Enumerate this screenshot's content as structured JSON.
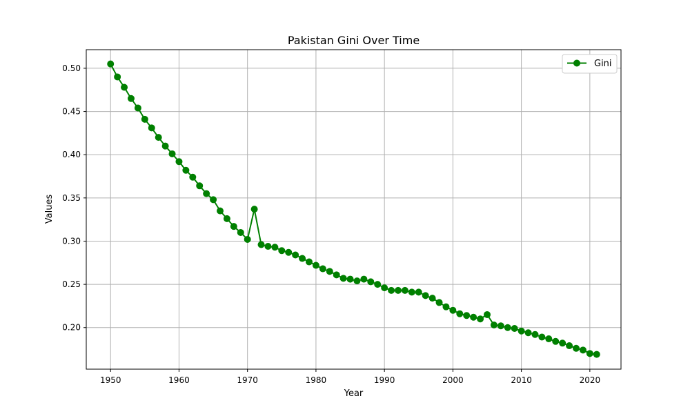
{
  "chart_data": {
    "type": "line",
    "title": "Pakistan Gini Over Time",
    "xlabel": "Year",
    "ylabel": "Values",
    "xlim": [
      1946.45,
      2024.55
    ],
    "ylim": [
      0.1519,
      0.5215
    ],
    "xticks": [
      1950,
      1960,
      1970,
      1980,
      1990,
      2000,
      2010,
      2020
    ],
    "yticks": [
      0.2,
      0.25,
      0.3,
      0.35,
      0.4,
      0.45,
      0.5
    ],
    "yticklabels": [
      "0.20",
      "0.25",
      "0.30",
      "0.35",
      "0.40",
      "0.45",
      "0.50"
    ],
    "grid": true,
    "legend_position": "top-right",
    "x": [
      1950,
      1951,
      1952,
      1953,
      1954,
      1955,
      1956,
      1957,
      1958,
      1959,
      1960,
      1961,
      1962,
      1963,
      1964,
      1965,
      1966,
      1967,
      1968,
      1969,
      1970,
      1971,
      1972,
      1973,
      1974,
      1975,
      1976,
      1977,
      1978,
      1979,
      1980,
      1981,
      1982,
      1983,
      1984,
      1985,
      1986,
      1987,
      1988,
      1989,
      1990,
      1991,
      1992,
      1993,
      1994,
      1995,
      1996,
      1997,
      1998,
      1999,
      2000,
      2001,
      2002,
      2003,
      2004,
      2005,
      2006,
      2007,
      2008,
      2009,
      2010,
      2011,
      2012,
      2013,
      2014,
      2015,
      2016,
      2017,
      2018,
      2019,
      2020,
      2021
    ],
    "series": [
      {
        "name": "Gini",
        "color": "#008000",
        "marker": "circle",
        "values": [
          0.505,
          0.49,
          0.478,
          0.465,
          0.454,
          0.441,
          0.431,
          0.42,
          0.41,
          0.401,
          0.392,
          0.382,
          0.374,
          0.364,
          0.355,
          0.348,
          0.335,
          0.326,
          0.317,
          0.31,
          0.302,
          0.337,
          0.296,
          0.294,
          0.293,
          0.289,
          0.287,
          0.284,
          0.28,
          0.276,
          0.272,
          0.268,
          0.265,
          0.261,
          0.257,
          0.256,
          0.254,
          0.256,
          0.253,
          0.25,
          0.246,
          0.243,
          0.243,
          0.243,
          0.241,
          0.241,
          0.237,
          0.234,
          0.229,
          0.224,
          0.22,
          0.216,
          0.214,
          0.212,
          0.21,
          0.215,
          0.203,
          0.202,
          0.2,
          0.199,
          0.196,
          0.194,
          0.192,
          0.189,
          0.187,
          0.184,
          0.182,
          0.179,
          0.176,
          0.174,
          0.17,
          0.169
        ]
      }
    ]
  }
}
